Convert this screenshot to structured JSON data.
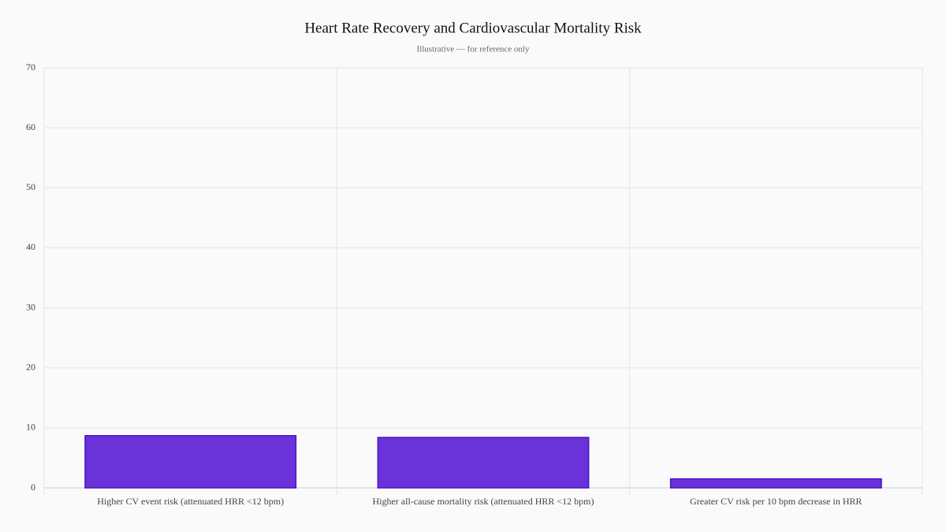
{
  "chart_data": {
    "type": "bar",
    "title": "Heart Rate Recovery and Cardiovascular Mortality Risk",
    "subtitle": "Illustrative — for reference only",
    "categories": [
      "Higher CV event risk (attenuated HRR <12 bpm)",
      "Higher all-cause mortality risk (attenuated HRR <12 bpm)",
      "Greater CV risk per 10 bpm decrease in HRR"
    ],
    "values": [
      8.7,
      8.4,
      1.5
    ],
    "color": "#6a33d9",
    "ylim": [
      0,
      70
    ],
    "yticks": [
      0,
      10,
      20,
      30,
      40,
      50,
      60,
      70
    ],
    "grid": true
  }
}
